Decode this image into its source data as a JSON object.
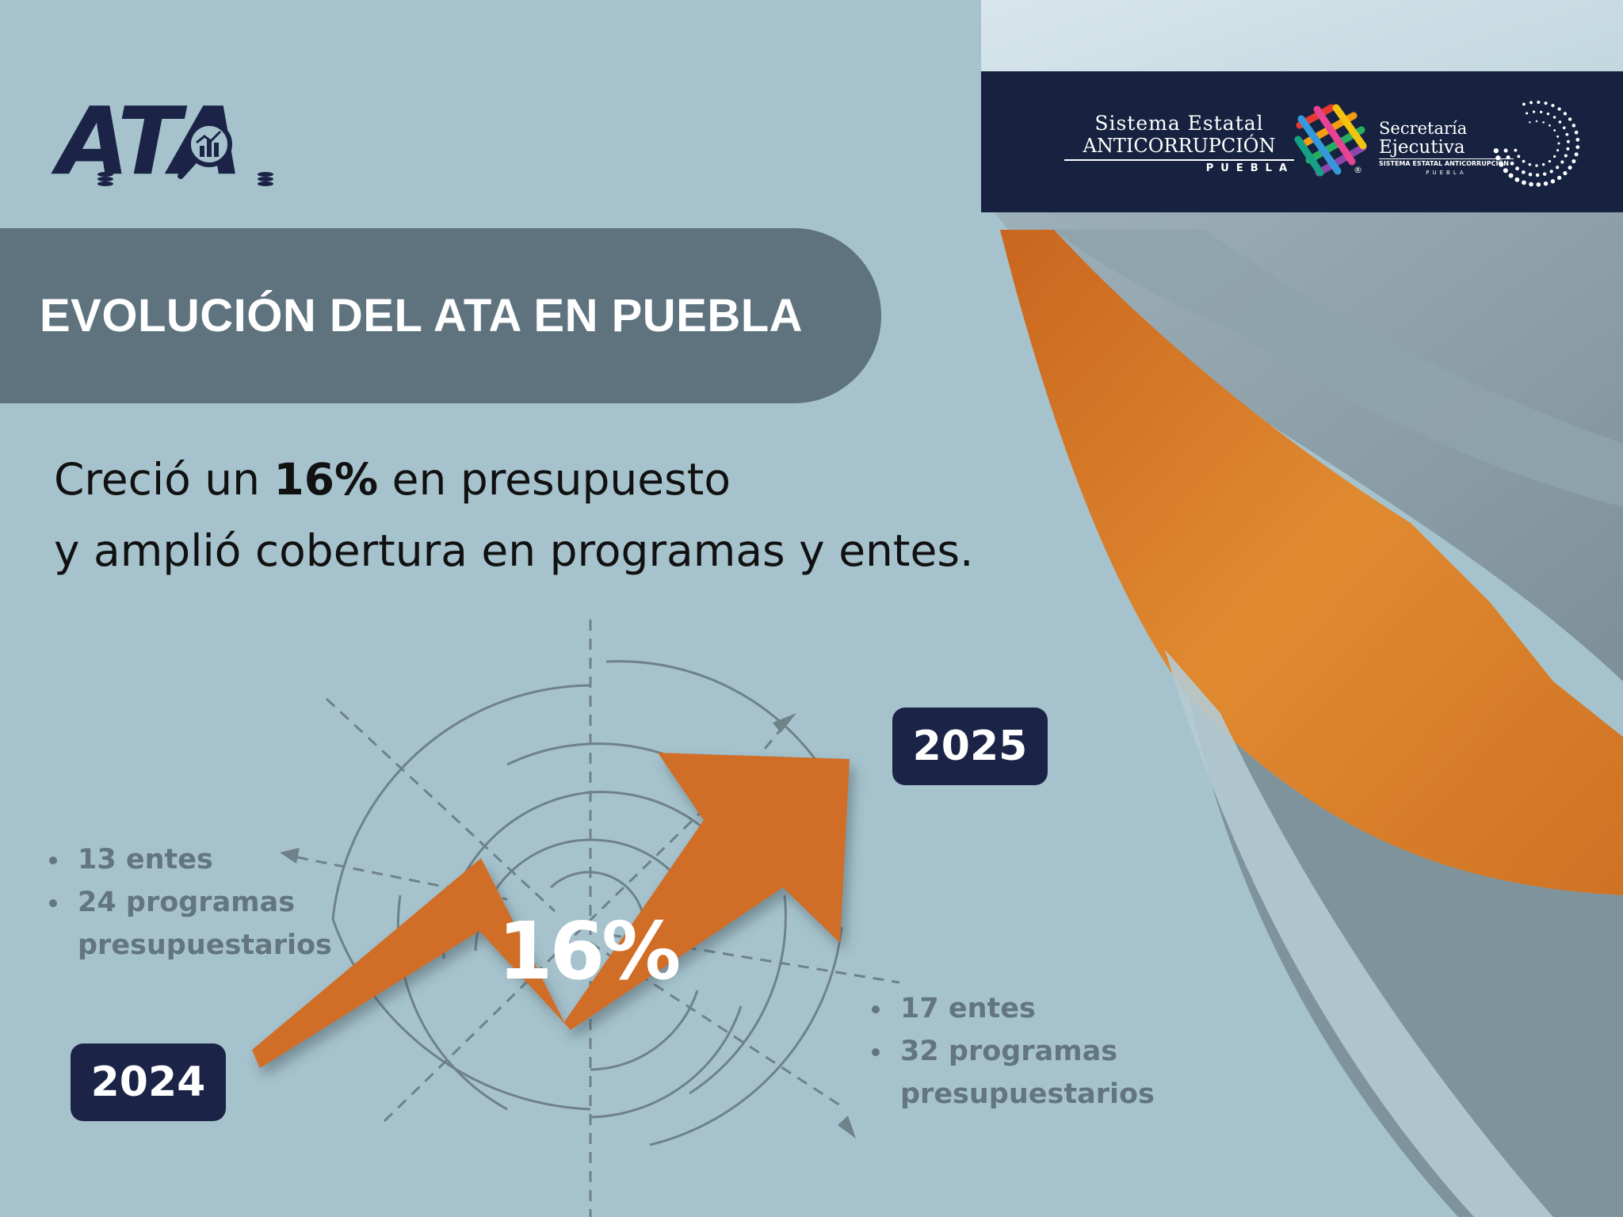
{
  "brand": {
    "ata_logo_text": "ATA"
  },
  "partners": {
    "sea": {
      "line1": "Sistema Estatal",
      "line2": "ANTICORRUPCIÓN",
      "line3": "PUEBLA",
      "registered": "®"
    },
    "secretaria": {
      "line1": "Secretaría",
      "line2": "Ejecutiva",
      "line3": "SISTEMA ESTATAL ANTICORRUPCIÓN",
      "line4": "PUEBLA"
    }
  },
  "title": "EVOLUCIÓN DEL ATA EN PUEBLA",
  "subtitle": {
    "line1_prefix": "Creció un ",
    "line1_bold": "16%",
    "line1_suffix": " en presupuesto",
    "line2": "y amplió cobertura en programas y entes."
  },
  "growth": {
    "percent_label": "16%",
    "from_year": "2024",
    "to_year": "2025"
  },
  "stats_2024": [
    "13 entes",
    "24 programas presupuestarios"
  ],
  "stats_2025": [
    "17 entes",
    "32 programas presupuestarios"
  ],
  "colors": {
    "background": "#a6c3cd",
    "navy": "#1b2447",
    "banner_gray": "#5e737e",
    "arrow_orange": "#d06d25",
    "muted_text": "#63767f"
  },
  "icons": [
    "magnifier-chart-icon",
    "coin-stack-icon",
    "weave-logo-icon",
    "dots-ring-icon",
    "growth-arrow-icon"
  ]
}
